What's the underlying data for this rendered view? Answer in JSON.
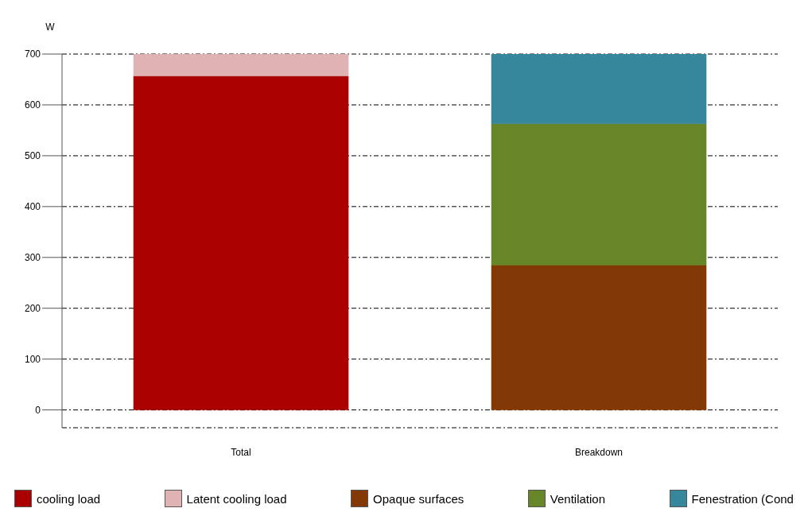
{
  "chart_data": {
    "type": "bar",
    "ylabel": "W",
    "categories": [
      "Total",
      "Breakdown"
    ],
    "stacked": true,
    "ylim": [
      -35,
      700
    ],
    "yticks": [
      0,
      100,
      200,
      300,
      400,
      500,
      600,
      700
    ],
    "grid": "y",
    "legend": "bottom",
    "series": [
      {
        "name": "cooling load",
        "color": "#aa0000",
        "values": [
          657,
          null
        ]
      },
      {
        "name": "Latent cooling load",
        "color": "#dfb3b3",
        "values": [
          43,
          null
        ]
      },
      {
        "name": "Opaque surfaces",
        "color": "#833905",
        "values": [
          null,
          285
        ]
      },
      {
        "name": "Ventilation",
        "color": "#668628",
        "values": [
          null,
          278
        ]
      },
      {
        "name": "Fenestration (Cond",
        "color": "#36879b",
        "values": [
          null,
          137
        ]
      }
    ]
  }
}
